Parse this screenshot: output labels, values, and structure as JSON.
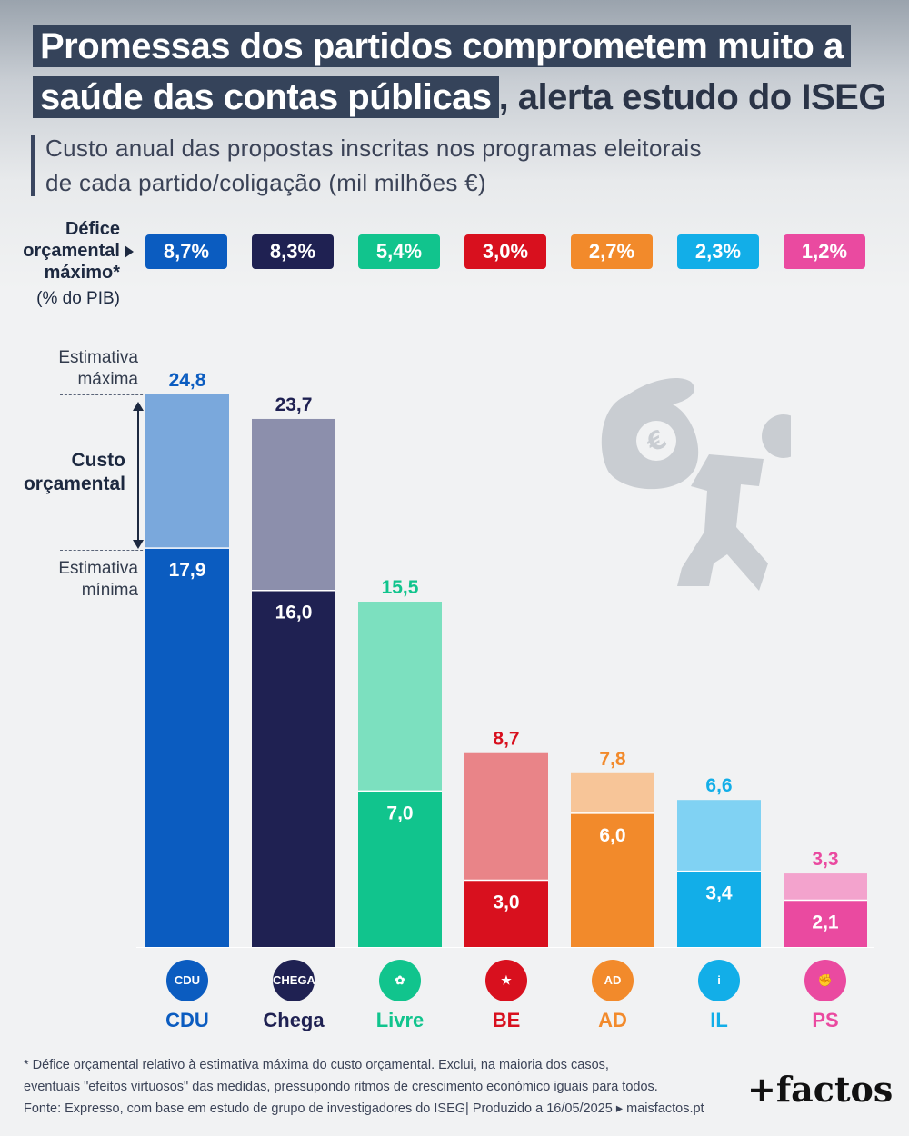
{
  "title": {
    "line1": "Promessas dos partidos comprometem muito a",
    "line2_boxed": "saúde das contas públicas",
    "line2_rest": ", alerta estudo do ISEG"
  },
  "subtitle": {
    "line1": "Custo anual das propostas inscritas nos programas eleitorais",
    "line2": "de cada partido/coligação (mil milhões €)"
  },
  "deficit": {
    "label": "Défice orçamental máximo*",
    "unit": "(% do PIB)",
    "values": [
      "8,7%",
      "8,3%",
      "5,4%",
      "3,0%",
      "2,7%",
      "2,3%",
      "1,2%"
    ]
  },
  "annotations": {
    "max": "Estimativa máxima",
    "cost": "Custo orçamental",
    "min": "Estimativa mínima"
  },
  "chart_data": {
    "type": "bar",
    "categories": [
      "CDU",
      "Chega",
      "Livre",
      "BE",
      "AD",
      "IL",
      "PS"
    ],
    "series": [
      {
        "name": "Estimativa mínima",
        "values": [
          17.9,
          16.0,
          7.0,
          3.0,
          6.0,
          3.4,
          2.1
        ],
        "labels": [
          "17,9",
          "16,0",
          "7,0",
          "3,0",
          "6,0",
          "3,4",
          "2,1"
        ]
      },
      {
        "name": "Estimativa máxima",
        "values": [
          24.8,
          23.7,
          15.5,
          8.7,
          7.8,
          6.6,
          3.3
        ],
        "labels": [
          "24,8",
          "23,7",
          "15,5",
          "8,7",
          "7,8",
          "6,6",
          "3,3"
        ]
      }
    ],
    "colors": {
      "dark": [
        "#0b5cc0",
        "#1f2152",
        "#11c48d",
        "#d8101e",
        "#f28a2b",
        "#12aee8",
        "#ea4aa0"
      ],
      "light": [
        "#7aa8dc",
        "#8c8fac",
        "#7ce0bf",
        "#e98488",
        "#f7c598",
        "#80d2f3",
        "#f3a3cd"
      ],
      "label": [
        "#0b5cc0",
        "#1f2152",
        "#11c48d",
        "#d8101e",
        "#f28a2b",
        "#12aee8",
        "#ea4aa0"
      ]
    },
    "ylim": [
      0,
      24.8
    ],
    "xlabel": "",
    "ylabel": ""
  },
  "parties": [
    {
      "name": "CDU",
      "logo": "CDU",
      "color": "#0b5cc0",
      "logo_bg": "#0b5cc0",
      "icon": "hammer-sickle-icon"
    },
    {
      "name": "Chega",
      "logo": "CHEGA",
      "color": "#1f2152",
      "logo_bg": "#1f2152",
      "icon": "chega-logo-icon"
    },
    {
      "name": "Livre",
      "logo": "✿",
      "color": "#11c48d",
      "logo_bg": "#11c48d",
      "icon": "poppy-icon"
    },
    {
      "name": "BE",
      "logo": "★",
      "color": "#d8101e",
      "logo_bg": "#d8101e",
      "icon": "star-figure-icon"
    },
    {
      "name": "AD",
      "logo": "AD",
      "color": "#f28a2b",
      "logo_bg": "#f28a2b",
      "icon": "ad-logo-icon"
    },
    {
      "name": "IL",
      "logo": "i",
      "color": "#12aee8",
      "logo_bg": "#12aee8",
      "icon": "info-i-icon"
    },
    {
      "name": "PS",
      "logo": "✊",
      "color": "#ea4aa0",
      "logo_bg": "#ea4aa0",
      "icon": "fist-rose-icon"
    }
  ],
  "footnote": {
    "line1": "* Défice orçamental relativo à estimativa máxima do custo orçamental. Exclui, na maioria dos casos,",
    "line2": "eventuais \"efeitos virtuosos\" das medidas, pressupondo ritmos de crescimento económico iguais para todos.",
    "line3": "Fonte: Expresso, com base em estudo de grupo de investigadores do ISEG| Produzido a 16/05/2025 ▸ maisfactos.pt"
  },
  "brand": "+factos",
  "illustration_icon": "person-carrying-euro-sack-icon"
}
